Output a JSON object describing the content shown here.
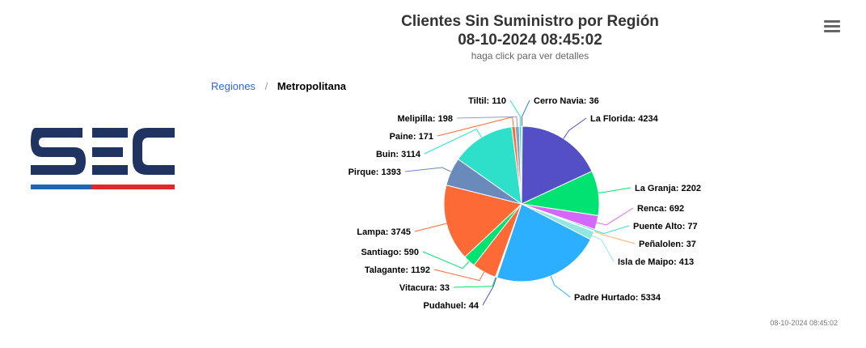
{
  "logo": {
    "text": "SEC",
    "colors": {
      "dark": "#1f3461",
      "blue": "#1f66b3",
      "red": "#e0272a"
    }
  },
  "header": {
    "title": "Clientes Sin Suministro por Región",
    "datetime": "08-10-2024 08:45:02",
    "subtitle": "haga click para ver detalles"
  },
  "menu": {
    "icon": "hamburger-menu-icon"
  },
  "breadcrumb": {
    "root": "Regiones",
    "separator": "/",
    "current": "Metropolitana"
  },
  "footer": {
    "timestamp": "08-10-2024 08:45:02"
  },
  "chart_data": {
    "type": "pie",
    "title": "Clientes Sin Suministro por Región",
    "categories": [
      "Cerro Navia",
      "La Florida",
      "La Granja",
      "Renca",
      "Puente Alto",
      "Peñalolen",
      "Isla de Maipo",
      "Padre Hurtado",
      "Pudahuel",
      "Vitacura",
      "Talagante",
      "Santiago",
      "Lampa",
      "Pirque",
      "Buin",
      "Paine",
      "Melipilla",
      "Tiltil"
    ],
    "values": [
      36,
      4234,
      2202,
      692,
      77,
      37,
      413,
      5334,
      44,
      33,
      1192,
      590,
      3745,
      1393,
      3114,
      171,
      198,
      110
    ],
    "colors": [
      "#2f7ed8",
      "#544fc5",
      "#00e272",
      "#d568fb",
      "#2ee0ca",
      "#feb56a",
      "#91e8e1",
      "#2caffe",
      "#544fc5",
      "#00e272",
      "#fe6a35",
      "#00e272",
      "#fe6a35",
      "#6b8abc",
      "#2ee0ca",
      "#fe6a35",
      "#8fa0c0",
      "#2ee0ca"
    ],
    "label_format": "{name}: {value}"
  }
}
